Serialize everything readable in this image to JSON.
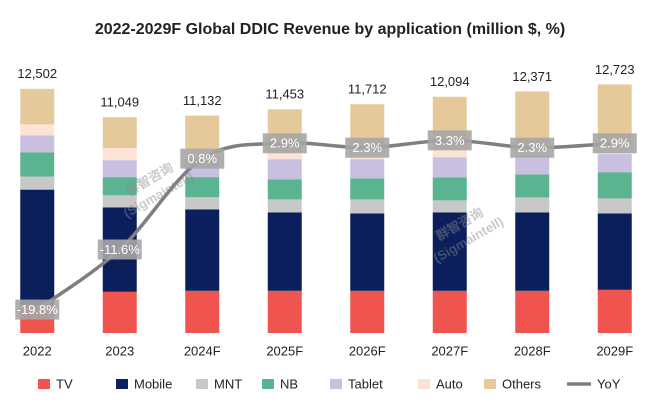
{
  "chart_data": {
    "type": "stacked_bar_line",
    "title": "2022-2029F Global DDIC Revenue by application (million $, %)",
    "categories": [
      "2022",
      "2023",
      "2024F",
      "2025F",
      "2026F",
      "2027F",
      "2028F",
      "2029F"
    ],
    "series": [
      {
        "name": "TV",
        "color": "#f0544f",
        "values": [
          1440,
          2110,
          2160,
          2160,
          2160,
          2160,
          2160,
          2210
        ]
      },
      {
        "name": "Mobile",
        "color": "#0b1f5c",
        "values": [
          5900,
          4320,
          4170,
          4010,
          3960,
          4010,
          4010,
          3910
        ]
      },
      {
        "name": "MNT",
        "color": "#c8c8c8",
        "values": [
          670,
          620,
          620,
          670,
          720,
          620,
          770,
          770
        ]
      },
      {
        "name": "NB",
        "color": "#5bb490",
        "values": [
          1230,
          930,
          1030,
          1030,
          1080,
          1180,
          1180,
          1340
        ]
      },
      {
        "name": "Tablet",
        "color": "#c9bfe0",
        "values": [
          870,
          870,
          930,
          1030,
          980,
          1030,
          980,
          930
        ]
      },
      {
        "name": "Auto",
        "color": "#fbe3d6",
        "values": [
          570,
          620,
          510,
          410,
          510,
          410,
          510,
          460
        ]
      },
      {
        "name": "Others",
        "color": "#e6c99b",
        "values": [
          1822,
          1579,
          1712,
          2143,
          2302,
          2684,
          2761,
          3103
        ]
      },
      {
        "name": "YoY",
        "color": "#7f7f7f",
        "axis": "y2",
        "values": [
          -19.8,
          -11.6,
          0.8,
          2.9,
          2.3,
          3.3,
          2.3,
          2.9
        ],
        "value_labels": [
          "-19.8%",
          "-11.6%",
          "0.8%",
          "2.9%",
          "2.3%",
          "3.3%",
          "2.3%",
          "2.9%"
        ]
      }
    ],
    "totals": [
      12502,
      11049,
      11132,
      11453,
      11712,
      12094,
      12371,
      12723
    ],
    "total_labels": [
      "12,502",
      "11,049",
      "11,132",
      "11,453",
      "11,712",
      "12,094",
      "12,371",
      "12,723"
    ],
    "ylim": [
      0,
      15000
    ],
    "y2lim": [
      -23,
      17
    ],
    "watermark": "群智咨询",
    "watermark_sub": "(Sigmaintell)"
  }
}
